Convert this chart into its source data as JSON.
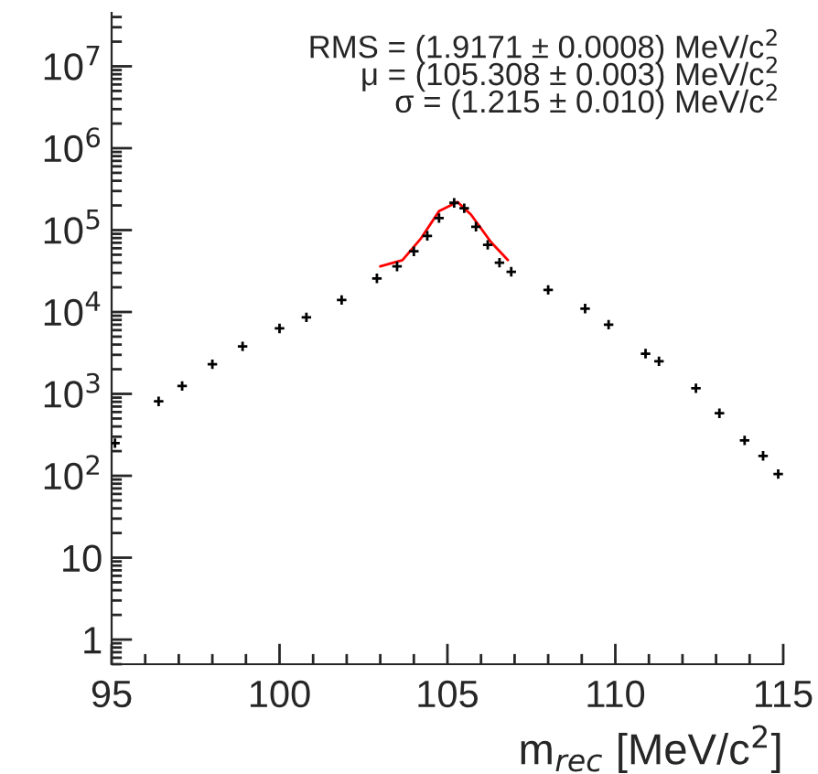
{
  "chart_data": {
    "type": "scatter",
    "xlabel": "m$_{rec}$ [MeV/c$^{2}$]",
    "log": "y",
    "grid": false,
    "legend": false,
    "xlim": [
      95,
      115
    ],
    "xticks": [
      95,
      100,
      105,
      110,
      115
    ],
    "ylim": [
      0.5,
      45000000
    ],
    "yticks": [
      {
        "value": 1,
        "label": "1"
      },
      {
        "value": 10,
        "label": "10"
      },
      {
        "value": 100,
        "label": "10$^{2}$"
      },
      {
        "value": 1000,
        "label": "10$^{3}$"
      },
      {
        "value": 10000,
        "label": "10$^{4}$"
      },
      {
        "value": 100000,
        "label": "10$^{5}$"
      },
      {
        "value": 1000000,
        "label": "10$^{6}$"
      },
      {
        "value": 10000000,
        "label": "10$^{7}$"
      }
    ],
    "annotations": [
      "RMS = (1.9171 ± 0.0008) MeV/c$^{2}$",
      "μ = (105.308 ± 0.003) MeV/c$^{2}$",
      "σ = (1.215 ± 0.010) MeV/c$^{2}$"
    ],
    "series": [
      {
        "marker": "cross",
        "color": "#000000",
        "x": [
          95.1,
          96.4,
          97.1,
          98.0,
          98.9,
          100.0,
          100.8,
          101.85,
          102.9,
          103.5,
          104.0,
          104.4,
          104.75,
          105.2,
          105.5,
          105.85,
          106.2,
          106.55,
          106.9,
          108.0,
          109.1,
          109.8,
          110.9,
          111.3,
          112.4,
          113.1,
          113.85,
          114.4,
          114.85
        ],
        "values": [
          250,
          810,
          1250,
          2300,
          3800,
          6300,
          8600,
          14000,
          25700,
          36000,
          55000,
          85000,
          140000,
          215000,
          185000,
          110000,
          66000,
          40000,
          31000,
          18600,
          11000,
          7000,
          3100,
          2500,
          1170,
          580,
          270,
          175,
          105
        ]
      },
      {
        "type": "line",
        "marker": "none",
        "color": "#ff0000",
        "x": [
          103.0,
          103.66,
          104.2,
          104.75,
          105.3,
          105.7,
          106.3,
          106.8
        ],
        "values": [
          36000,
          43000,
          78000,
          170000,
          220000,
          155000,
          71000,
          43000
        ]
      }
    ]
  }
}
